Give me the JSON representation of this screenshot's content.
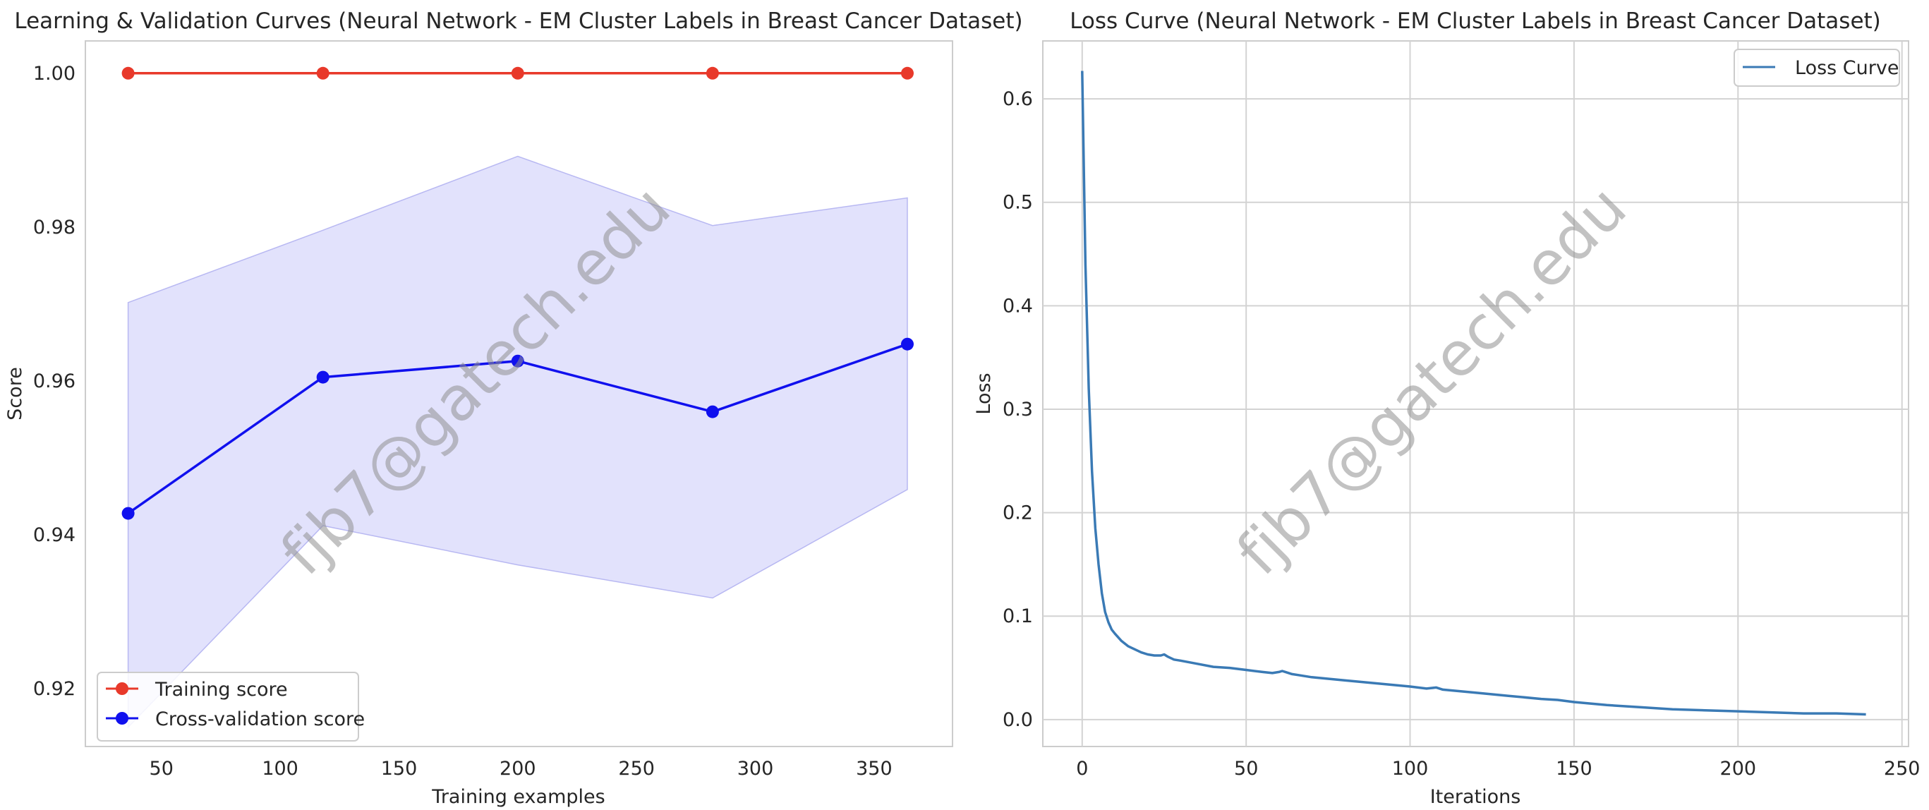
{
  "watermark": "fjb7@gatech.edu",
  "chart_data": [
    {
      "type": "line",
      "title": "Learning & Validation Curves (Neural Network - EM Cluster Labels in Breast Cancer Dataset)",
      "xlabel": "Training examples",
      "ylabel": "Score",
      "xlim": [
        18,
        383
      ],
      "ylim": [
        0.9125,
        1.0042
      ],
      "xticks": [
        50,
        100,
        150,
        200,
        250,
        300,
        350
      ],
      "xtick_labels": [
        "50",
        "100",
        "150",
        "200",
        "250",
        "300",
        "350"
      ],
      "yticks": [
        0.92,
        0.94,
        0.96,
        0.98,
        1.0
      ],
      "ytick_labels": [
        "0.92",
        "0.94",
        "0.96",
        "0.98",
        "1.00"
      ],
      "grid": false,
      "legend": "lower-left",
      "x": [
        36,
        118,
        200,
        282,
        364
      ],
      "series": [
        {
          "name": "Training score",
          "values": [
            1.0,
            1.0,
            1.0,
            1.0,
            1.0
          ],
          "color": "#e8392a",
          "marker": "o"
        },
        {
          "name": "Cross-validation score",
          "values": [
            0.9428,
            0.9605,
            0.9626,
            0.956,
            0.9648
          ],
          "color": "#1010ee",
          "marker": "o",
          "band_lower": [
            0.915,
            0.9412,
            0.9361,
            0.9318,
            0.9459
          ],
          "band_upper": [
            0.9702,
            0.9796,
            0.9892,
            0.9802,
            0.9838
          ],
          "band_color": "#cfcffa"
        }
      ]
    },
    {
      "type": "line",
      "title": "Loss Curve (Neural Network - EM Cluster Labels in Breast Cancer Dataset)",
      "xlabel": "Iterations",
      "ylabel": "Loss",
      "xlim": [
        -12,
        252
      ],
      "ylim": [
        -0.026,
        0.656
      ],
      "xticks": [
        0,
        50,
        100,
        150,
        200,
        250
      ],
      "xtick_labels": [
        "0",
        "50",
        "100",
        "150",
        "200",
        "250"
      ],
      "yticks": [
        0.0,
        0.1,
        0.2,
        0.3,
        0.4,
        0.5,
        0.6
      ],
      "ytick_labels": [
        "0.0",
        "0.1",
        "0.2",
        "0.3",
        "0.4",
        "0.5",
        "0.6"
      ],
      "grid": true,
      "legend": "top-right",
      "series": [
        {
          "name": "Loss Curve",
          "color": "#3a7ab5",
          "x": [
            0,
            1,
            2,
            3,
            4,
            5,
            6,
            7,
            8,
            9,
            10,
            12,
            14,
            16,
            18,
            20,
            22,
            24,
            25,
            26,
            28,
            30,
            35,
            40,
            45,
            50,
            55,
            58,
            60,
            61,
            62,
            64,
            66,
            70,
            80,
            90,
            100,
            105,
            108,
            110,
            120,
            130,
            140,
            145,
            150,
            160,
            170,
            180,
            190,
            200,
            210,
            220,
            230,
            239
          ],
          "values": [
            0.627,
            0.44,
            0.32,
            0.24,
            0.185,
            0.15,
            0.122,
            0.104,
            0.094,
            0.087,
            0.083,
            0.076,
            0.071,
            0.068,
            0.065,
            0.063,
            0.062,
            0.062,
            0.063,
            0.061,
            0.058,
            0.057,
            0.054,
            0.051,
            0.05,
            0.048,
            0.046,
            0.045,
            0.046,
            0.047,
            0.046,
            0.044,
            0.043,
            0.041,
            0.038,
            0.035,
            0.032,
            0.03,
            0.031,
            0.029,
            0.026,
            0.023,
            0.02,
            0.019,
            0.017,
            0.014,
            0.012,
            0.01,
            0.009,
            0.008,
            0.007,
            0.006,
            0.006,
            0.005
          ]
        }
      ]
    }
  ]
}
